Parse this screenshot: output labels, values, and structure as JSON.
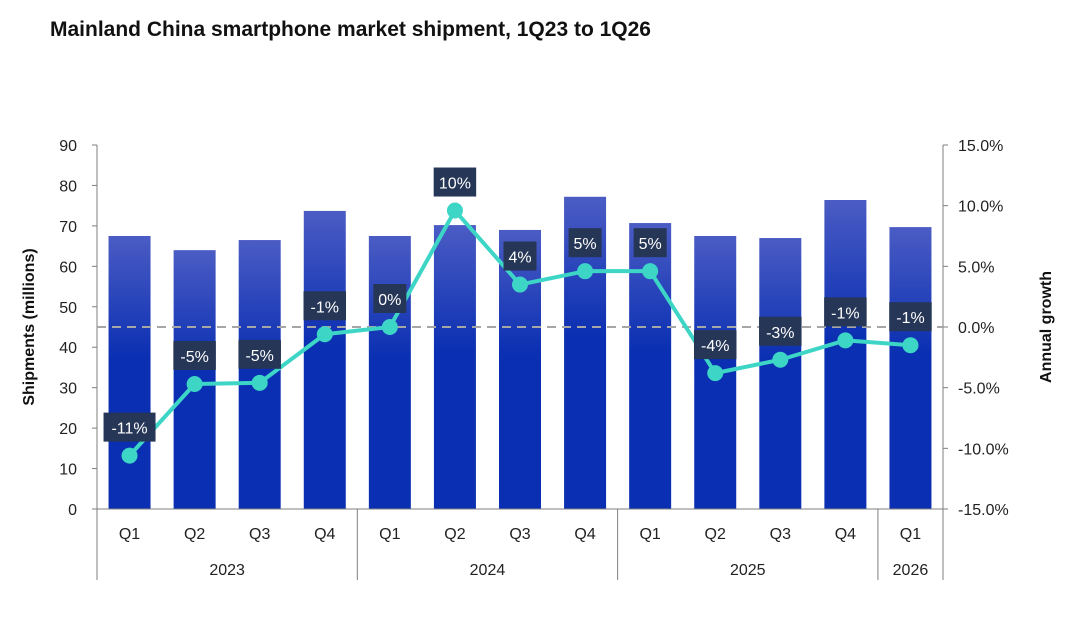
{
  "chart_data": {
    "type": "bar+line",
    "title": "Mainland China smartphone market shipment, 1Q23 to 1Q26",
    "categories": [
      "Q1",
      "Q2",
      "Q3",
      "Q4",
      "Q1",
      "Q2",
      "Q3",
      "Q4",
      "Q1",
      "Q2",
      "Q3",
      "Q4",
      "Q1"
    ],
    "groups": [
      {
        "label": "2023",
        "count": 4
      },
      {
        "label": "2024",
        "count": 4
      },
      {
        "label": "2025",
        "count": 4
      },
      {
        "label": "2026",
        "count": 1
      }
    ],
    "ylabel": "Shipments (millions)",
    "y2label": "Annual growth",
    "ylim": [
      0,
      90
    ],
    "yticks": [
      "0",
      "10",
      "20",
      "30",
      "40",
      "50",
      "60",
      "70",
      "80",
      "90"
    ],
    "y2lim": [
      -15,
      15
    ],
    "y2ticks": [
      "-15.0%",
      "-10.0%",
      "-5.0%",
      "0.0%",
      "5.0%",
      "10.0%",
      "15.0%"
    ],
    "grid": false,
    "reference_line": {
      "y2": 0,
      "style": "dashed"
    },
    "series": [
      {
        "type": "bar",
        "axis": "left",
        "values": [
          67.5,
          64.0,
          66.5,
          73.7,
          67.5,
          70.2,
          69.0,
          77.2,
          70.7,
          67.5,
          67.0,
          76.4,
          69.7
        ]
      },
      {
        "type": "line",
        "axis": "right",
        "values": [
          -10.6,
          -4.7,
          -4.6,
          -0.6,
          0.0,
          9.6,
          3.5,
          4.6,
          4.6,
          -3.8,
          -2.7,
          -1.1,
          -1.5
        ],
        "data_labels": [
          "-11%",
          "-5%",
          "-5%",
          "-1%",
          "0%",
          "10%",
          "4%",
          "5%",
          "5%",
          "-4%",
          "-3%",
          "-1%",
          "-1%"
        ]
      }
    ],
    "colors": {
      "bar_top": "#4b5cc4",
      "bar_bottom": "#0a2fb2",
      "line": "#3dd6c6",
      "label_bg": "#263657",
      "label_text": "#ffffff",
      "axis": "#7f7f7f",
      "reference": "#a6a6a6"
    }
  }
}
